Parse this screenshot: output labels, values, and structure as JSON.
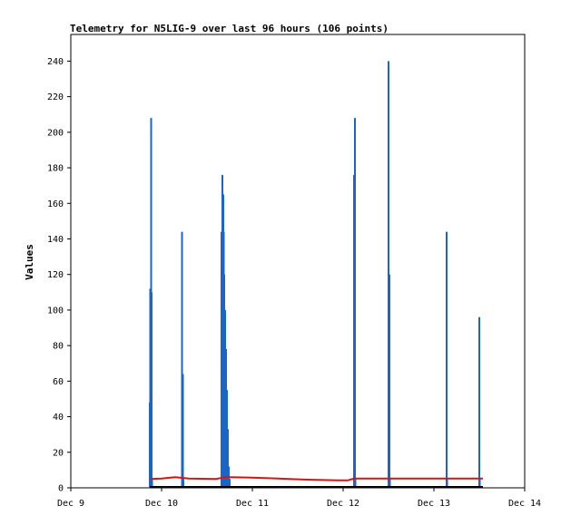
{
  "chart_data": {
    "type": "line",
    "title": "Telemetry for N5LIG-9 over last 96 hours (106 points)",
    "xlabel": "",
    "ylabel": "Values",
    "x_ticks": [
      "Dec 9",
      "Dec 10",
      "Dec 11",
      "Dec 12",
      "Dec 13",
      "Dec 14"
    ],
    "y_ticks": [
      "0",
      "20",
      "40",
      "60",
      "80",
      "100",
      "120",
      "140",
      "160",
      "180",
      "200",
      "220",
      "240"
    ],
    "xlim_days": [
      0,
      5
    ],
    "ylim": [
      0,
      255
    ],
    "grid": false,
    "colors": {
      "blue_series": "#1a66c8",
      "red_series": "#e01010",
      "black_series": "#000000",
      "axis": "#000000"
    },
    "series": [
      {
        "color": "#1a66c8",
        "style": "spikes",
        "points": [
          [
            0.87,
            48
          ],
          [
            0.875,
            112
          ],
          [
            0.885,
            208
          ],
          [
            0.89,
            110
          ],
          [
            0.895,
            5
          ],
          [
            1.225,
            144
          ],
          [
            1.235,
            64
          ],
          [
            1.24,
            5
          ],
          [
            1.66,
            144
          ],
          [
            1.665,
            98
          ],
          [
            1.67,
            176
          ],
          [
            1.675,
            140
          ],
          [
            1.68,
            165
          ],
          [
            1.685,
            144
          ],
          [
            1.69,
            120
          ],
          [
            1.7,
            100
          ],
          [
            1.71,
            78
          ],
          [
            1.72,
            55
          ],
          [
            1.73,
            33
          ],
          [
            1.74,
            12
          ],
          [
            1.75,
            5
          ],
          [
            3.12,
            176
          ],
          [
            3.13,
            208
          ],
          [
            3.135,
            5
          ],
          [
            3.5,
            240
          ],
          [
            3.51,
            120
          ],
          [
            3.515,
            5
          ],
          [
            4.14,
            144
          ],
          [
            4.145,
            5
          ],
          [
            4.5,
            96
          ],
          [
            4.505,
            5
          ]
        ]
      },
      {
        "color": "#e01010",
        "style": "line",
        "points": [
          [
            0.87,
            5
          ],
          [
            1.0,
            5.2
          ],
          [
            1.15,
            6
          ],
          [
            1.3,
            5.2
          ],
          [
            1.6,
            5
          ],
          [
            1.7,
            6
          ],
          [
            1.95,
            5.8
          ],
          [
            2.25,
            5.3
          ],
          [
            2.6,
            4.6
          ],
          [
            2.95,
            4.2
          ],
          [
            3.05,
            4.2
          ],
          [
            3.12,
            5.2
          ],
          [
            3.5,
            5.2
          ],
          [
            4.0,
            5.2
          ],
          [
            4.54,
            5.2
          ]
        ]
      },
      {
        "color": "#000000",
        "style": "line",
        "points": [
          [
            0.87,
            0.5
          ],
          [
            4.54,
            0.5
          ]
        ]
      }
    ]
  }
}
